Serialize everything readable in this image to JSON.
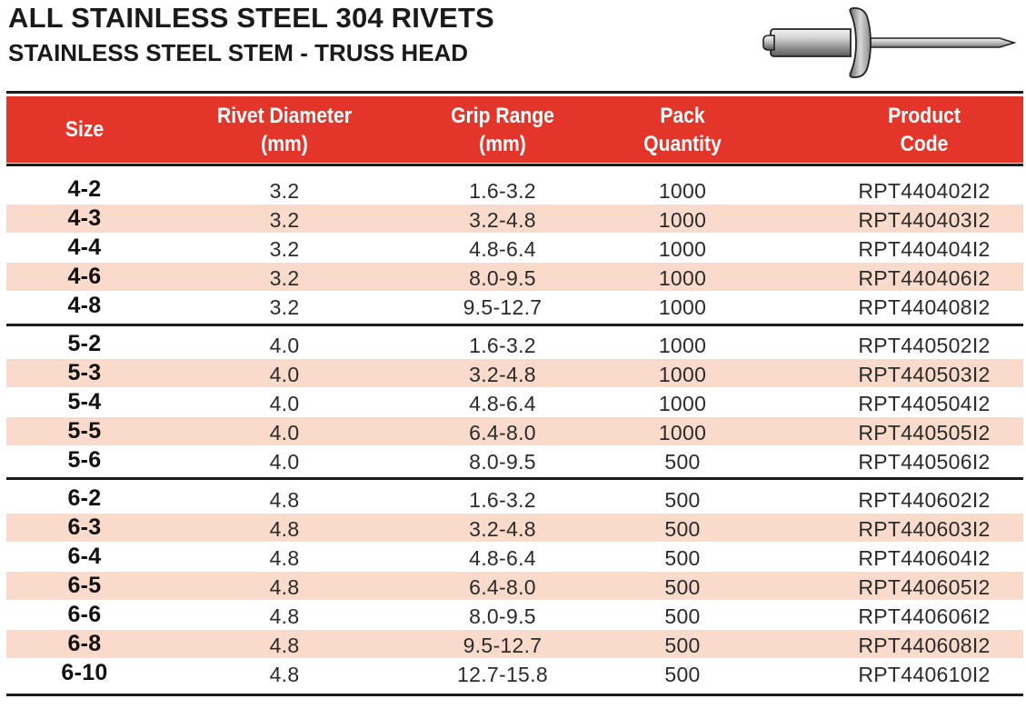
{
  "title": "ALL STAINLESS STEEL 304 RIVETS",
  "subtitle": "STAINLESS STEEL STEM - TRUSS HEAD",
  "colors": {
    "header": "#e4352b",
    "shade": "#fadbcb",
    "rule": "#1c1c1c"
  },
  "icon": "rivet-illustration",
  "headers": [
    [
      "Size"
    ],
    [
      "Rivet Diameter",
      "(mm)"
    ],
    [
      "Grip Range",
      "(mm)"
    ],
    [
      "Pack",
      "Quantity"
    ],
    [
      "Product",
      "Code"
    ]
  ],
  "groups": [
    {
      "rows": [
        [
          "4-2",
          "3.2",
          "1.6-3.2",
          "1000",
          "RPT440402I2"
        ],
        [
          "4-3",
          "3.2",
          "3.2-4.8",
          "1000",
          "RPT440403I2"
        ],
        [
          "4-4",
          "3.2",
          "4.8-6.4",
          "1000",
          "RPT440404I2"
        ],
        [
          "4-6",
          "3.2",
          "8.0-9.5",
          "1000",
          "RPT440406I2"
        ],
        [
          "4-8",
          "3.2",
          "9.5-12.7",
          "1000",
          "RPT440408I2"
        ]
      ]
    },
    {
      "rows": [
        [
          "5-2",
          "4.0",
          "1.6-3.2",
          "1000",
          "RPT440502I2"
        ],
        [
          "5-3",
          "4.0",
          "3.2-4.8",
          "1000",
          "RPT440503I2"
        ],
        [
          "5-4",
          "4.0",
          "4.8-6.4",
          "1000",
          "RPT440504I2"
        ],
        [
          "5-5",
          "4.0",
          "6.4-8.0",
          "1000",
          "RPT440505I2"
        ],
        [
          "5-6",
          "4.0",
          "8.0-9.5",
          "500",
          "RPT440506I2"
        ]
      ]
    },
    {
      "rows": [
        [
          "6-2",
          "4.8",
          "1.6-3.2",
          "500",
          "RPT440602I2"
        ],
        [
          "6-3",
          "4.8",
          "3.2-4.8",
          "500",
          "RPT440603I2"
        ],
        [
          "6-4",
          "4.8",
          "4.8-6.4",
          "500",
          "RPT440604I2"
        ],
        [
          "6-5",
          "4.8",
          "6.4-8.0",
          "500",
          "RPT440605I2"
        ],
        [
          "6-6",
          "4.8",
          "8.0-9.5",
          "500",
          "RPT440606I2"
        ],
        [
          "6-8",
          "4.8",
          "9.5-12.7",
          "500",
          "RPT440608I2"
        ],
        [
          "6-10",
          "4.8",
          "12.7-15.8",
          "500",
          "RPT440610I2"
        ]
      ]
    }
  ]
}
